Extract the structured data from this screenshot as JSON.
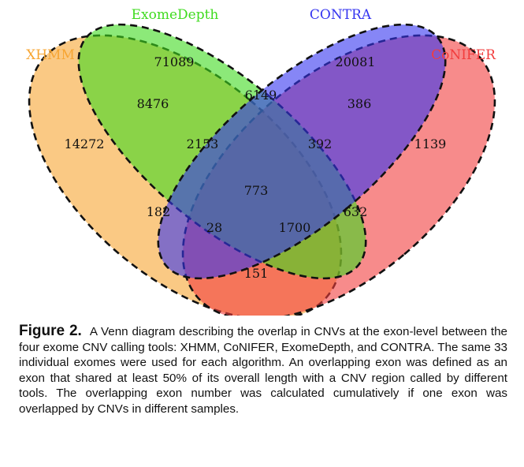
{
  "sets": [
    {
      "key": "xhmm",
      "label": "XHMM",
      "color": "#F7A532"
    },
    {
      "key": "exomedepth",
      "label": "ExomeDepth",
      "color": "#3FDB1F"
    },
    {
      "key": "contra",
      "label": "CONTRA",
      "color": "#3535F0"
    },
    {
      "key": "conifer",
      "label": "CoNIFER",
      "color": "#F23D3D"
    }
  ],
  "regions": {
    "exomedepth_only": "71089",
    "contra_only": "20081",
    "xhmm_only": "14272",
    "conifer_only": "1139",
    "xhmm_exomedepth": "8476",
    "exomedepth_contra": "6149",
    "contra_conifer": "386",
    "xhmm_exomedepth_contra": "2153",
    "exomedepth_contra_conifer": "392",
    "all_four": "773",
    "xhmm_contra": "182",
    "exomedepth_conifer": "632",
    "xhmm_contra_conifer": "28",
    "xhmm_exomedepth_conifer": "1700",
    "xhmm_conifer": "151"
  },
  "caption": {
    "figure_label": "Figure 2.",
    "text": "A Venn diagram describing the overlap in CNVs at the exon-level between the four exome CNV calling tools: XHMM, CoNIFER, ExomeDepth, and CONTRA. The same 33 individual exomes were used for each algorithm. An overlapping exon was defined as an exon that shared at least 50% of its overall length with a CNV region called by different tools. The overlapping exon number was calculated cumulatively if one exon was overlapped by CNVs in different samples."
  }
}
